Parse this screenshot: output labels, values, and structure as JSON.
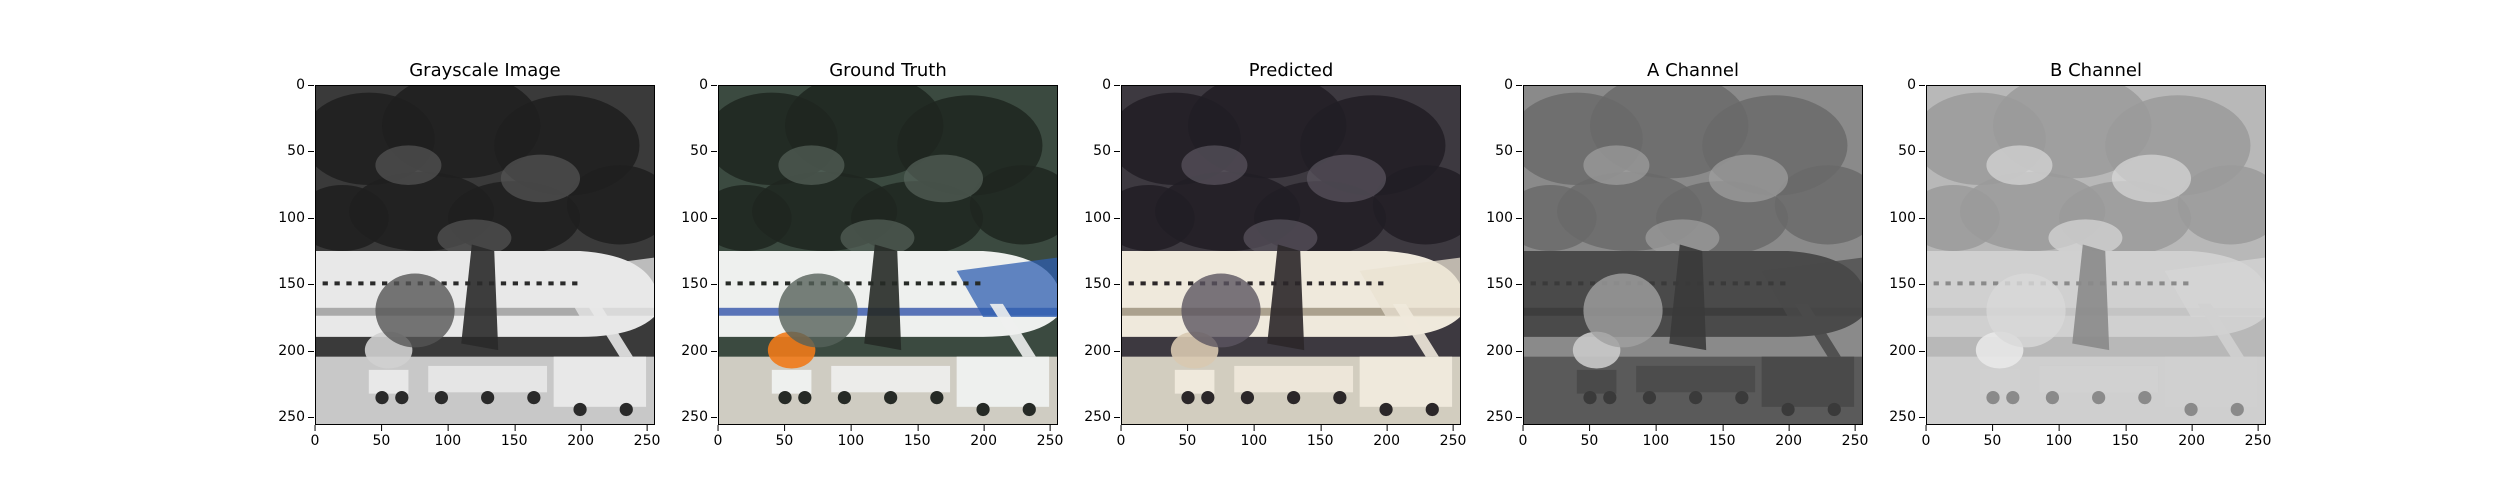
{
  "panels": [
    {
      "title": "Grayscale Image",
      "mode": "gray"
    },
    {
      "title": "Ground Truth",
      "mode": "truth"
    },
    {
      "title": "Predicted",
      "mode": "pred"
    },
    {
      "title": "A Channel",
      "mode": "a"
    },
    {
      "title": "B Channel",
      "mode": "b"
    }
  ],
  "axis": {
    "yticks": [
      "0",
      "50",
      "100",
      "150",
      "200",
      "250"
    ],
    "xticks": [
      "0",
      "50",
      "100",
      "150",
      "200",
      "250"
    ],
    "range": [
      0,
      256
    ]
  }
}
